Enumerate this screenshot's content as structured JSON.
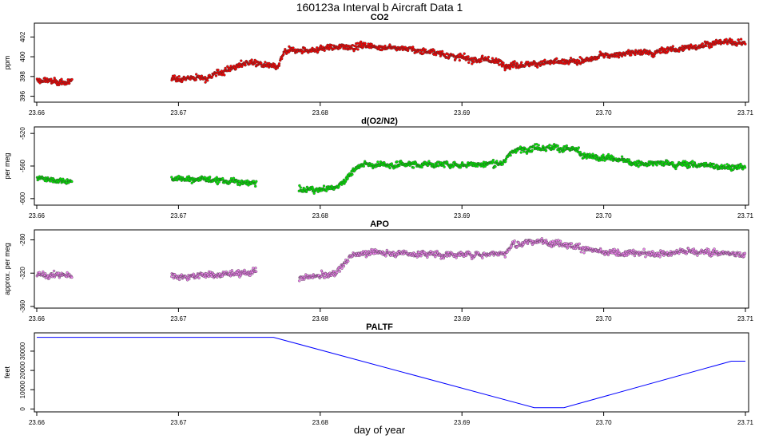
{
  "title": "160123a   Interval b Aircraft Data 1",
  "xlabel": "day of year",
  "x_ticks": [
    "23.66",
    "23.67",
    "23.68",
    "23.69",
    "23.70",
    "23.71"
  ],
  "colors": {
    "co2": "#ff0000",
    "o2n2": "#00ee00",
    "apo": "#ee82ee",
    "paltf": "#0000ff"
  },
  "chart_data": [
    {
      "type": "scatter",
      "title": "CO2",
      "ylabel": "ppm",
      "xlim": [
        23.66,
        23.71
      ],
      "ylim": [
        395.4,
        403.4
      ],
      "y_ticks": [
        "396",
        "398",
        "400",
        "402"
      ],
      "segments": [
        [
          23.66,
          23.6625
        ],
        [
          23.6695,
          23.71
        ]
      ],
      "trend": [
        [
          23.66,
          397.6
        ],
        [
          23.6625,
          397.4
        ],
        [
          23.6695,
          397.8
        ],
        [
          23.672,
          397.9
        ],
        [
          23.675,
          399.5
        ],
        [
          23.677,
          398.8
        ],
        [
          23.6775,
          400.5
        ],
        [
          23.68,
          400.8
        ],
        [
          23.683,
          401.2
        ],
        [
          23.688,
          400.5
        ],
        [
          23.69,
          399.9
        ],
        [
          23.692,
          399.6
        ],
        [
          23.6935,
          399.2
        ],
        [
          23.697,
          399.4
        ],
        [
          23.699,
          399.6
        ],
        [
          23.7,
          400.2
        ],
        [
          23.703,
          400.4
        ],
        [
          23.706,
          400.9
        ],
        [
          23.708,
          401.5
        ],
        [
          23.71,
          401.4
        ]
      ]
    },
    {
      "type": "scatter",
      "title": "d(O2/N2)",
      "ylabel": "per meg",
      "xlim": [
        23.66,
        23.71
      ],
      "ylim": [
        -608,
        -512
      ],
      "y_ticks": [
        "-520",
        "-560",
        "-600"
      ],
      "segments": [
        [
          23.66,
          23.6625
        ],
        [
          23.6695,
          23.6755
        ],
        [
          23.6785,
          23.71
        ]
      ],
      "trend": [
        [
          23.66,
          -575
        ],
        [
          23.6625,
          -578
        ],
        [
          23.6695,
          -576
        ],
        [
          23.672,
          -576
        ],
        [
          23.6755,
          -582
        ],
        [
          23.6785,
          -590
        ],
        [
          23.681,
          -588
        ],
        [
          23.682,
          -572
        ],
        [
          23.683,
          -558
        ],
        [
          23.69,
          -558
        ],
        [
          23.693,
          -556
        ],
        [
          23.6935,
          -542
        ],
        [
          23.695,
          -536
        ],
        [
          23.697,
          -538
        ],
        [
          23.698,
          -540
        ],
        [
          23.6985,
          -548
        ],
        [
          23.7,
          -551
        ],
        [
          23.703,
          -557
        ],
        [
          23.706,
          -558
        ],
        [
          23.71,
          -562
        ]
      ]
    },
    {
      "type": "scatter",
      "title": "APO",
      "ylabel": "approx. per meg",
      "xlim": [
        23.66,
        23.71
      ],
      "ylim": [
        -362,
        -268
      ],
      "y_ticks": [
        "-280",
        "-320",
        "-360"
      ],
      "segments": [
        [
          23.66,
          23.6625
        ],
        [
          23.6695,
          23.6755
        ],
        [
          23.6785,
          23.71
        ]
      ],
      "trend": [
        [
          23.66,
          -322
        ],
        [
          23.6625,
          -323
        ],
        [
          23.6695,
          -323
        ],
        [
          23.672,
          -322
        ],
        [
          23.6755,
          -318
        ],
        [
          23.6785,
          -326
        ],
        [
          23.681,
          -322
        ],
        [
          23.682,
          -302
        ],
        [
          23.683,
          -295
        ],
        [
          23.69,
          -298
        ],
        [
          23.693,
          -296
        ],
        [
          23.6935,
          -287
        ],
        [
          23.695,
          -282
        ],
        [
          23.697,
          -283
        ],
        [
          23.698,
          -288
        ],
        [
          23.7,
          -296
        ],
        [
          23.703,
          -297
        ],
        [
          23.706,
          -294
        ],
        [
          23.71,
          -297
        ]
      ]
    },
    {
      "type": "line",
      "title": "PALTF",
      "ylabel": "feet",
      "xlim": [
        23.66,
        23.71
      ],
      "ylim": [
        -1500,
        39500
      ],
      "y_ticks": [
        "0",
        "10000",
        "20000",
        "30000"
      ],
      "x": [
        23.66,
        23.6767,
        23.6951,
        23.6972,
        23.709,
        23.71
      ],
      "y": [
        37200,
        37200,
        700,
        700,
        24800,
        24800
      ]
    }
  ]
}
